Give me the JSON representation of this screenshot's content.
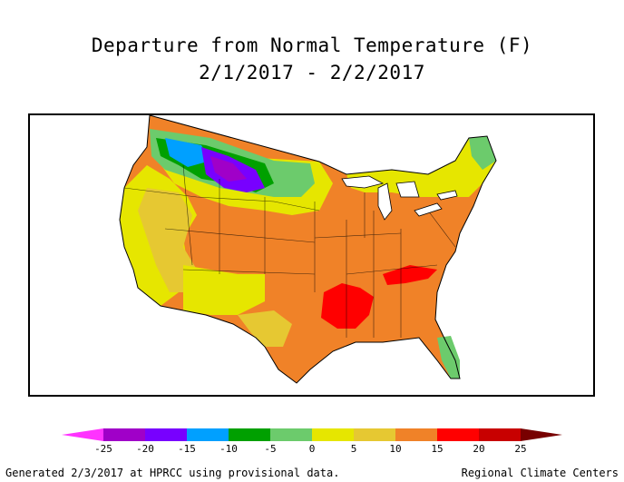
{
  "title": {
    "line1": "Departure from Normal Temperature (F)",
    "line2": "2/1/2017 - 2/2/2017"
  },
  "legend": {
    "ticks": [
      "-25",
      "-20",
      "-15",
      "-10",
      "-5",
      "0",
      "5",
      "10",
      "15",
      "20",
      "25"
    ],
    "bins": [
      {
        "range": "< -25",
        "color": "#ff33ff"
      },
      {
        "range": "-25 to -20",
        "color": "#a000c8"
      },
      {
        "range": "-20 to -15",
        "color": "#7800ff"
      },
      {
        "range": "-15 to -10",
        "color": "#00a0ff"
      },
      {
        "range": "-10 to -5",
        "color": "#00a000"
      },
      {
        "range": "-5 to 0",
        "color": "#6ccb6c"
      },
      {
        "range": "0 to 5",
        "color": "#e6e600"
      },
      {
        "range": "5 to 10",
        "color": "#e6c832"
      },
      {
        "range": "10 to 15",
        "color": "#f08228"
      },
      {
        "range": "15 to 20",
        "color": "#ff0000"
      },
      {
        "range": "20 to 25",
        "color": "#c80000"
      },
      {
        "range": "> 25",
        "color": "#780000"
      }
    ]
  },
  "footer": {
    "left": "Generated 2/3/2017 at HPRCC using provisional data.",
    "right": "Regional Climate Centers"
  }
}
